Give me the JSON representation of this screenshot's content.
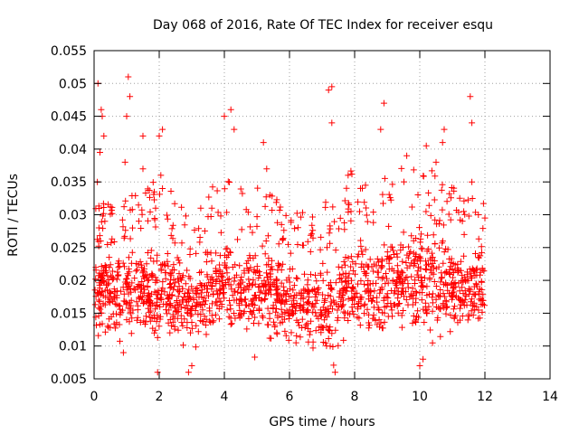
{
  "chart_data": {
    "type": "scatter",
    "title": "Day 068 of 2016, Rate Of TEC Index for receiver esqu",
    "xlabel": "GPS time / hours",
    "ylabel": "ROTI / TECUs",
    "xlim": [
      0,
      14
    ],
    "ylim": [
      0.005,
      0.055
    ],
    "grid": true,
    "marker": "plus",
    "color": "#ff0000",
    "x_ticks": [
      "0",
      "2",
      "4",
      "6",
      "8",
      "10",
      "12",
      "14"
    ],
    "y_ticks": [
      "0.005",
      "0.01",
      "0.015",
      "0.02",
      "0.025",
      "0.03",
      "0.035",
      "0.04",
      "0.045",
      "0.05",
      "0.055"
    ],
    "x_tick_values": [
      0,
      2,
      4,
      6,
      8,
      10,
      12,
      14
    ],
    "y_tick_values": [
      0.005,
      0.01,
      0.015,
      0.02,
      0.025,
      0.03,
      0.035,
      0.04,
      0.045,
      0.05,
      0.055
    ],
    "series": [
      {
        "name": "ROTI",
        "x_range": [
          0.0,
          12.0
        ],
        "points": [
          [
            0.12,
            0.05
          ],
          [
            0.18,
            0.0395
          ],
          [
            0.22,
            0.046
          ],
          [
            0.25,
            0.045
          ],
          [
            0.3,
            0.042
          ],
          [
            0.1,
            0.035
          ],
          [
            0.15,
            0.028
          ],
          [
            0.2,
            0.026
          ],
          [
            0.35,
            0.022
          ],
          [
            0.5,
            0.018
          ],
          [
            1.05,
            0.051
          ],
          [
            1.1,
            0.048
          ],
          [
            1.0,
            0.045
          ],
          [
            0.95,
            0.038
          ],
          [
            1.5,
            0.042
          ],
          [
            1.5,
            0.037
          ],
          [
            2.0,
            0.042
          ],
          [
            2.1,
            0.043
          ],
          [
            2.05,
            0.036
          ],
          [
            2.1,
            0.034
          ],
          [
            1.95,
            0.006
          ],
          [
            2.9,
            0.006
          ],
          [
            4.0,
            0.045
          ],
          [
            4.2,
            0.046
          ],
          [
            4.3,
            0.043
          ],
          [
            5.2,
            0.041
          ],
          [
            5.3,
            0.037
          ],
          [
            5.4,
            0.033
          ],
          [
            7.2,
            0.049
          ],
          [
            7.3,
            0.0495
          ],
          [
            7.3,
            0.044
          ],
          [
            7.8,
            0.036
          ],
          [
            7.4,
            0.006
          ],
          [
            8.9,
            0.047
          ],
          [
            8.8,
            0.043
          ],
          [
            9.6,
            0.039
          ],
          [
            10.2,
            0.0405
          ],
          [
            10.5,
            0.038
          ],
          [
            10.7,
            0.041
          ],
          [
            10.75,
            0.043
          ],
          [
            11.55,
            0.048
          ],
          [
            11.6,
            0.044
          ],
          [
            11.6,
            0.035
          ],
          [
            11.8,
            0.03
          ],
          [
            12.0,
            0.0295
          ],
          [
            10.0,
            0.007
          ],
          [
            10.1,
            0.008
          ],
          [
            3.0,
            0.007
          ],
          [
            0.9,
            0.009
          ],
          [
            6.2,
            0.0105
          ]
        ],
        "envelope": [
          {
            "x": 0.0,
            "center": 0.018,
            "spread": 0.007
          },
          {
            "x": 1.0,
            "center": 0.018,
            "spread": 0.008
          },
          {
            "x": 2.0,
            "center": 0.019,
            "spread": 0.009
          },
          {
            "x": 3.0,
            "center": 0.016,
            "spread": 0.007
          },
          {
            "x": 4.0,
            "center": 0.02,
            "spread": 0.009
          },
          {
            "x": 5.0,
            "center": 0.019,
            "spread": 0.009
          },
          {
            "x": 6.0,
            "center": 0.017,
            "spread": 0.007
          },
          {
            "x": 7.0,
            "center": 0.016,
            "spread": 0.008
          },
          {
            "x": 8.0,
            "center": 0.019,
            "spread": 0.01
          },
          {
            "x": 9.0,
            "center": 0.019,
            "spread": 0.009
          },
          {
            "x": 10.0,
            "center": 0.02,
            "spread": 0.01
          },
          {
            "x": 11.0,
            "center": 0.019,
            "spread": 0.008
          },
          {
            "x": 12.0,
            "center": 0.019,
            "spread": 0.007
          }
        ],
        "approx_point_count": 2600
      }
    ]
  }
}
